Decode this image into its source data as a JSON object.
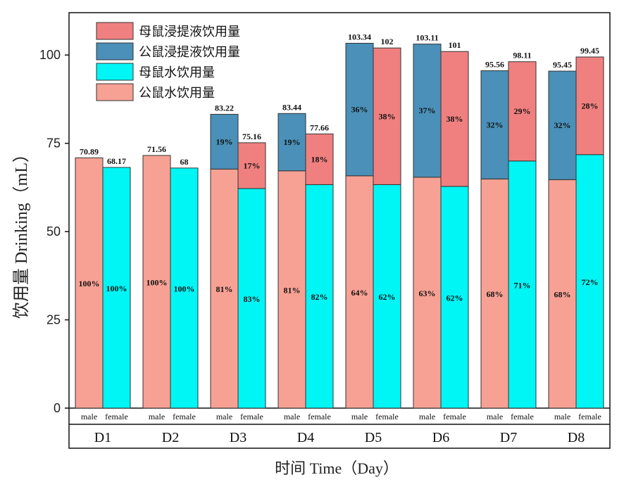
{
  "chart_data": {
    "type": "bar",
    "stacked": true,
    "ylabel": "饮用量 Drinking（mL）",
    "xlabel": "时间 Time（Day）",
    "ylim": [
      0,
      112
    ],
    "yticks": [
      0,
      25,
      50,
      75,
      100
    ],
    "categories": [
      "D1",
      "D2",
      "D3",
      "D4",
      "D5",
      "D6",
      "D7",
      "D8"
    ],
    "sub_labels": [
      "male",
      "female"
    ],
    "legend": [
      {
        "name": "母鼠浸提液饮用量",
        "color": "#F08080"
      },
      {
        "name": "公鼠浸提液饮用量",
        "color": "#4A90B8"
      },
      {
        "name": "母鼠水饮用量",
        "color": "#00F5F5"
      },
      {
        "name": "公鼠水饮用量",
        "color": "#F7A194"
      }
    ],
    "bars": [
      {
        "day": "D1",
        "sex": "male",
        "water": 70.89,
        "extract": 0,
        "total": "70.89",
        "water_pct": "100%",
        "extract_pct": ""
      },
      {
        "day": "D1",
        "sex": "female",
        "water": 68.17,
        "extract": 0,
        "total": "68.17",
        "water_pct": "100%",
        "extract_pct": ""
      },
      {
        "day": "D2",
        "sex": "male",
        "water": 71.56,
        "extract": 0,
        "total": "71.56",
        "water_pct": "100%",
        "extract_pct": ""
      },
      {
        "day": "D2",
        "sex": "female",
        "water": 68.0,
        "extract": 0,
        "total": "68",
        "water_pct": "100%",
        "extract_pct": ""
      },
      {
        "day": "D3",
        "sex": "male",
        "water": 67.7,
        "extract": 15.52,
        "total": "83.22",
        "water_pct": "81%",
        "extract_pct": "19%"
      },
      {
        "day": "D3",
        "sex": "female",
        "water": 62.2,
        "extract": 12.96,
        "total": "75.16",
        "water_pct": "83%",
        "extract_pct": "17%"
      },
      {
        "day": "D4",
        "sex": "male",
        "water": 67.2,
        "extract": 16.24,
        "total": "83.44",
        "water_pct": "81%",
        "extract_pct": "19%"
      },
      {
        "day": "D4",
        "sex": "female",
        "water": 63.3,
        "extract": 14.36,
        "total": "77.66",
        "water_pct": "82%",
        "extract_pct": "18%"
      },
      {
        "day": "D5",
        "sex": "male",
        "water": 65.8,
        "extract": 37.54,
        "total": "103.34",
        "water_pct": "64%",
        "extract_pct": "36%"
      },
      {
        "day": "D5",
        "sex": "female",
        "water": 63.3,
        "extract": 38.7,
        "total": "102",
        "water_pct": "62%",
        "extract_pct": "38%"
      },
      {
        "day": "D6",
        "sex": "male",
        "water": 65.4,
        "extract": 37.71,
        "total": "103.11",
        "water_pct": "63%",
        "extract_pct": "37%"
      },
      {
        "day": "D6",
        "sex": "female",
        "water": 62.8,
        "extract": 38.2,
        "total": "101",
        "water_pct": "62%",
        "extract_pct": "38%"
      },
      {
        "day": "D7",
        "sex": "male",
        "water": 64.9,
        "extract": 30.66,
        "total": "95.56",
        "water_pct": "68%",
        "extract_pct": "32%"
      },
      {
        "day": "D7",
        "sex": "female",
        "water": 70.0,
        "extract": 28.11,
        "total": "98.11",
        "water_pct": "71%",
        "extract_pct": "29%"
      },
      {
        "day": "D8",
        "sex": "male",
        "water": 64.7,
        "extract": 30.75,
        "total": "95.45",
        "water_pct": "68%",
        "extract_pct": "32%"
      },
      {
        "day": "D8",
        "sex": "female",
        "water": 71.8,
        "extract": 27.65,
        "total": "99.45",
        "water_pct": "72%",
        "extract_pct": "28%"
      }
    ]
  }
}
